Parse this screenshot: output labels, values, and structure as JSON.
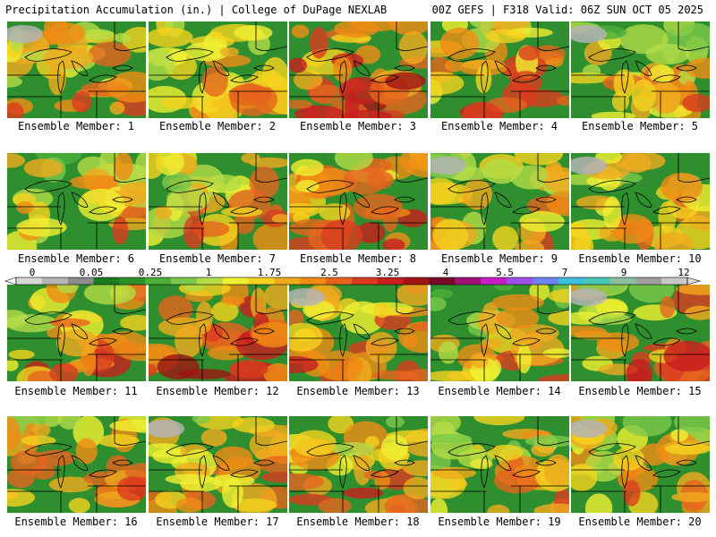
{
  "header": {
    "title": "Precipitation Accumulation (in.) | College of DuPage NEXLAB",
    "run_info": "00Z GEFS | F318 Valid: 06Z SUN OCT 05 2025"
  },
  "panels": [
    {
      "label": "Ensemble Member: 1",
      "intensity": 0.45
    },
    {
      "label": "Ensemble Member: 2",
      "intensity": 0.35
    },
    {
      "label": "Ensemble Member: 3",
      "intensity": 0.85
    },
    {
      "label": "Ensemble Member: 4",
      "intensity": 0.55
    },
    {
      "label": "Ensemble Member: 5",
      "intensity": 0.3
    },
    {
      "label": "Ensemble Member: 6",
      "intensity": 0.35
    },
    {
      "label": "Ensemble Member: 7",
      "intensity": 0.45
    },
    {
      "label": "Ensemble Member: 8",
      "intensity": 0.6
    },
    {
      "label": "Ensemble Member: 9",
      "intensity": 0.3
    },
    {
      "label": "Ensemble Member: 10",
      "intensity": 0.4
    },
    {
      "label": "Ensemble Member: 11",
      "intensity": 0.5
    },
    {
      "label": "Ensemble Member: 12",
      "intensity": 0.8
    },
    {
      "label": "Ensemble Member: 13",
      "intensity": 0.65
    },
    {
      "label": "Ensemble Member: 14",
      "intensity": 0.3
    },
    {
      "label": "Ensemble Member: 15",
      "intensity": 0.55
    },
    {
      "label": "Ensemble Member: 16",
      "intensity": 0.55
    },
    {
      "label": "Ensemble Member: 17",
      "intensity": 0.35
    },
    {
      "label": "Ensemble Member: 18",
      "intensity": 0.45
    },
    {
      "label": "Ensemble Member: 19",
      "intensity": 0.3
    },
    {
      "label": "Ensemble Member: 20",
      "intensity": 0.4
    }
  ],
  "colorbar": {
    "ticks": [
      "0",
      "0.05",
      "0.25",
      "1",
      "1.75",
      "2.5",
      "3.25",
      "4",
      "5.5",
      "7",
      "9",
      "12"
    ],
    "colors": [
      "#d7d7d7",
      "#b4b4b4",
      "#8c8c8c",
      "#1e7a1e",
      "#2f8f2f",
      "#4caf3a",
      "#7cc84a",
      "#b4dc46",
      "#f0f032",
      "#f5d21e",
      "#f0aa1e",
      "#f08c14",
      "#e6641e",
      "#dc3c1e",
      "#c81e1e",
      "#a01414",
      "#780a28",
      "#a0147a",
      "#c81ec8",
      "#a050e6",
      "#6e82f0",
      "#3cbedc",
      "#46c8b4",
      "#8cbea0",
      "#a0a0a0",
      "#c8c8c8"
    ]
  }
}
